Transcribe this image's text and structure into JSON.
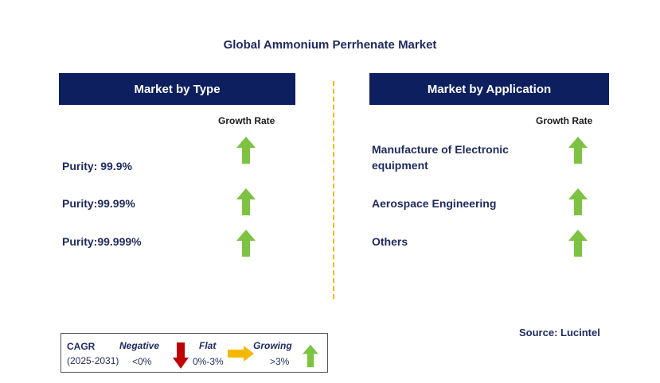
{
  "title": "Global Ammonium Perrhenate Market",
  "left_panel": {
    "header": "Market by Type",
    "growth_label": "Growth Rate",
    "items": [
      {
        "label": "Purity: 99.9%",
        "trend": "up"
      },
      {
        "label": "Purity:99.99%",
        "trend": "up"
      },
      {
        "label": "Purity:99.999%",
        "trend": "up"
      }
    ]
  },
  "right_panel": {
    "header": "Market by Application",
    "growth_label": "Growth Rate",
    "items": [
      {
        "label_line1": "Manufacture of Electronic",
        "label_line2": "equipment",
        "trend": "up"
      },
      {
        "label": "Aerospace Engineering",
        "trend": "up"
      },
      {
        "label": "Others",
        "trend": "up"
      }
    ]
  },
  "legend": {
    "cagr": "CAGR",
    "period": "(2025-2031)",
    "negative": "Negative",
    "negative_range": "<0%",
    "flat": "Flat",
    "flat_range": "0%-3%",
    "growing": "Growing",
    "growing_range": ">3%"
  },
  "source": "Source: Lucintel",
  "colors": {
    "header_bg": "#0d1f5e",
    "up_arrow": "#7dc242",
    "down_arrow": "#c00000",
    "flat_arrow": "#f5b800",
    "divider": "#f5b800"
  }
}
